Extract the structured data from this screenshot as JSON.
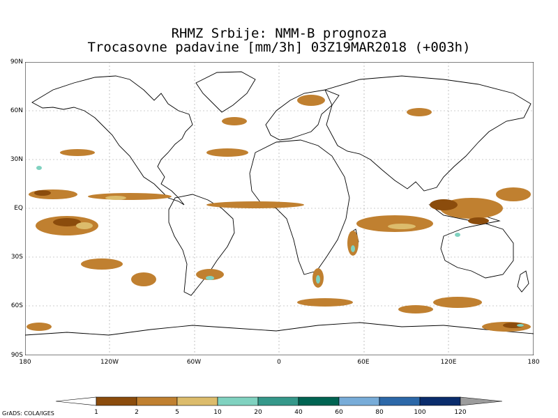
{
  "title": {
    "line1": "RHMZ Srbije: NMM-B prognoza",
    "line2": "Trocasovne padavine [mm/3h] 03Z19MAR2018 (+003h)"
  },
  "axes": {
    "lat_labels": [
      "90N",
      "60N",
      "30N",
      "EQ",
      "30S",
      "60S",
      "90S"
    ],
    "lon_labels": [
      "180",
      "120W",
      "60W",
      "0",
      "60E",
      "120E",
      "180"
    ]
  },
  "colorbar": {
    "labels": [
      "1",
      "2",
      "5",
      "10",
      "20",
      "40",
      "60",
      "80",
      "100",
      "120"
    ],
    "colors": [
      "#ffffff",
      "#8b4c0c",
      "#c08030",
      "#dcbc6c",
      "#80d2c0",
      "#35988a",
      "#006452",
      "#78acd8",
      "#2c68a8",
      "#0a2c6c",
      "#9c9c9c"
    ]
  },
  "credit": "GrADS: COLA/IGES"
}
